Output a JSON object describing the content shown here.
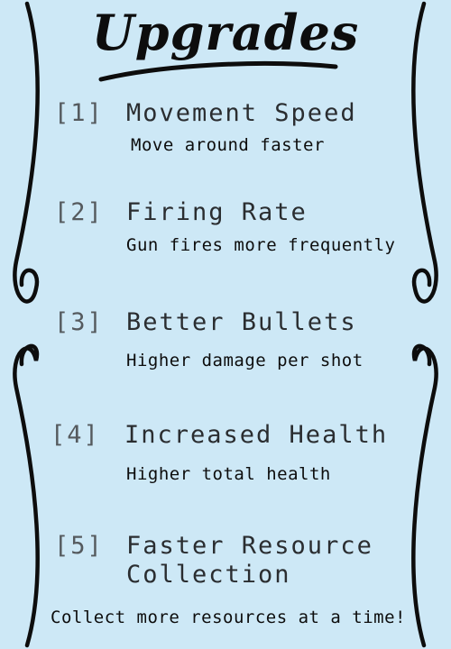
{
  "title": "Upgrades",
  "colors": {
    "background": "#cde8f6",
    "ink": "#0d0d0d",
    "number": "#555a5e"
  },
  "upgrades": [
    {
      "key": "[1]",
      "name": "Movement Speed",
      "description": "Move around faster"
    },
    {
      "key": "[2]",
      "name": "Firing Rate",
      "description": "Gun fires more frequently"
    },
    {
      "key": "[3]",
      "name": "Better Bullets",
      "description": "Higher damage per shot"
    },
    {
      "key": "[4]",
      "name": "Increased Health",
      "description": "Higher total health"
    },
    {
      "key": "[5]",
      "name_line1": "Faster Resource",
      "name_line2": "Collection",
      "description": "Collect more resources at a time!"
    }
  ]
}
